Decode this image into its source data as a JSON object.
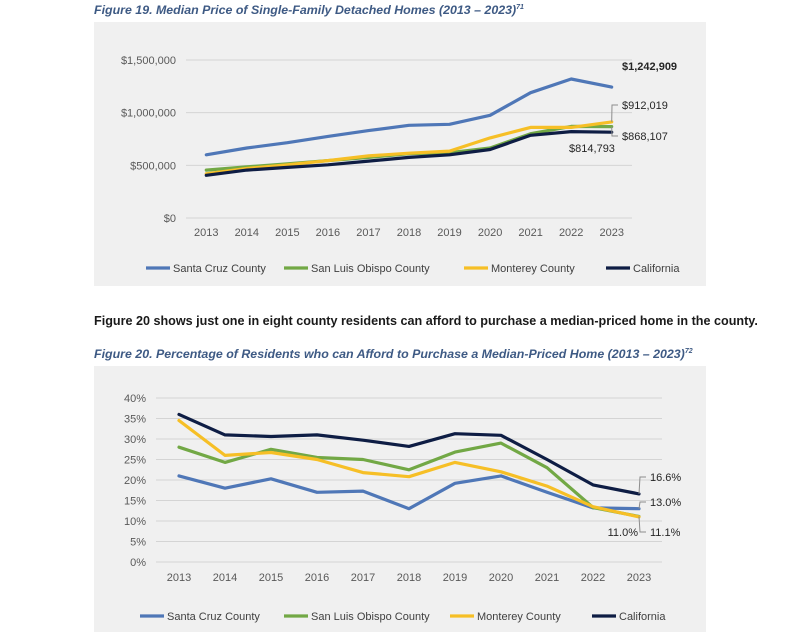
{
  "fig19": {
    "title": "Figure 19. Median Price of Single-Family Detached Homes (2013 – 2023)",
    "footnote": "71"
  },
  "paragraph": "Figure 20 shows just one in eight county residents can afford to purchase a median-priced home in the county.",
  "fig20": {
    "title": "Figure 20. Percentage of Residents who can Afford to Purchase a Median-Priced Home (2013 – 2023)",
    "footnote": "72"
  },
  "chart_data": [
    {
      "id": "fig19",
      "type": "line",
      "title": "Figure 19. Median Price of Single-Family Detached Homes (2013 – 2023)",
      "categories": [
        "2013",
        "2014",
        "2015",
        "2016",
        "2017",
        "2018",
        "2019",
        "2020",
        "2021",
        "2022",
        "2023"
      ],
      "ylim": [
        0,
        1500000
      ],
      "yticks": [
        0,
        500000,
        1000000,
        1500000
      ],
      "ytick_labels": [
        "$0",
        "$500,000",
        "$1,000,000",
        "$1,500,000"
      ],
      "grid": true,
      "legend_position": "bottom",
      "series": [
        {
          "name": "Santa Cruz County",
          "color": "#4f77b7",
          "values": [
            600000,
            665000,
            715000,
            775000,
            830000,
            880000,
            890000,
            975000,
            1190000,
            1320000,
            1242909
          ]
        },
        {
          "name": "San Luis Obispo County",
          "color": "#72a845",
          "values": [
            455000,
            485000,
            515000,
            545000,
            575000,
            610000,
            620000,
            665000,
            800000,
            870000,
            868107
          ]
        },
        {
          "name": "Monterey County",
          "color": "#f6bf26",
          "values": [
            420000,
            470000,
            505000,
            545000,
            590000,
            615000,
            635000,
            760000,
            860000,
            860000,
            912019
          ]
        },
        {
          "name": "California",
          "color": "#0e1d44",
          "values": [
            405000,
            455000,
            480000,
            505000,
            540000,
            575000,
            600000,
            650000,
            785000,
            820000,
            814793
          ]
        }
      ],
      "annotations": [
        {
          "text": "$1,242,909",
          "series": "Santa Cruz County",
          "bold": true
        },
        {
          "text": "$912,019",
          "series": "Monterey County",
          "bold": false
        },
        {
          "text": "$868,107",
          "series": "San Luis Obispo County",
          "bold": false
        },
        {
          "text": "$814,793",
          "series": "California",
          "bold": false
        }
      ]
    },
    {
      "id": "fig20",
      "type": "line",
      "title": "Figure 20. Percentage of Residents who can Afford to Purchase a Median-Priced Home (2013 – 2023)",
      "categories": [
        "2013",
        "2014",
        "2015",
        "2016",
        "2017",
        "2018",
        "2019",
        "2020",
        "2021",
        "2022",
        "2023"
      ],
      "ylim": [
        0,
        40
      ],
      "yticks": [
        0,
        5,
        10,
        15,
        20,
        25,
        30,
        35,
        40
      ],
      "ytick_labels": [
        "0%",
        "5%",
        "10%",
        "15%",
        "20%",
        "25%",
        "30%",
        "35%",
        "40%"
      ],
      "grid": true,
      "legend_position": "bottom",
      "series": [
        {
          "name": "Santa Cruz County",
          "color": "#4f77b7",
          "values": [
            21,
            18,
            20.3,
            17,
            17.3,
            13,
            19.2,
            21,
            17,
            13.2,
            13.0
          ]
        },
        {
          "name": "San Luis Obispo County",
          "color": "#72a845",
          "values": [
            28,
            24.3,
            27.5,
            25.5,
            25,
            22.5,
            26.8,
            29,
            23,
            13.3,
            11.1
          ]
        },
        {
          "name": "Monterey County",
          "color": "#f6bf26",
          "values": [
            34.5,
            26,
            26.7,
            25,
            21.8,
            20.8,
            24.3,
            22,
            18.5,
            13.5,
            11.0
          ]
        },
        {
          "name": "California",
          "color": "#0e1d44",
          "values": [
            36,
            31,
            30.6,
            31,
            29.7,
            28.2,
            31.3,
            30.9,
            25,
            18.8,
            16.6
          ]
        }
      ],
      "annotations": [
        {
          "text": "16.6%",
          "series": "California",
          "bold": false
        },
        {
          "text": "13.0%",
          "series": "Santa Cruz County",
          "bold": false
        },
        {
          "text": "11.0%",
          "series": "Monterey County",
          "bold": false
        },
        {
          "text": "11.1%",
          "series": "San Luis Obispo County",
          "bold": false
        }
      ]
    }
  ]
}
